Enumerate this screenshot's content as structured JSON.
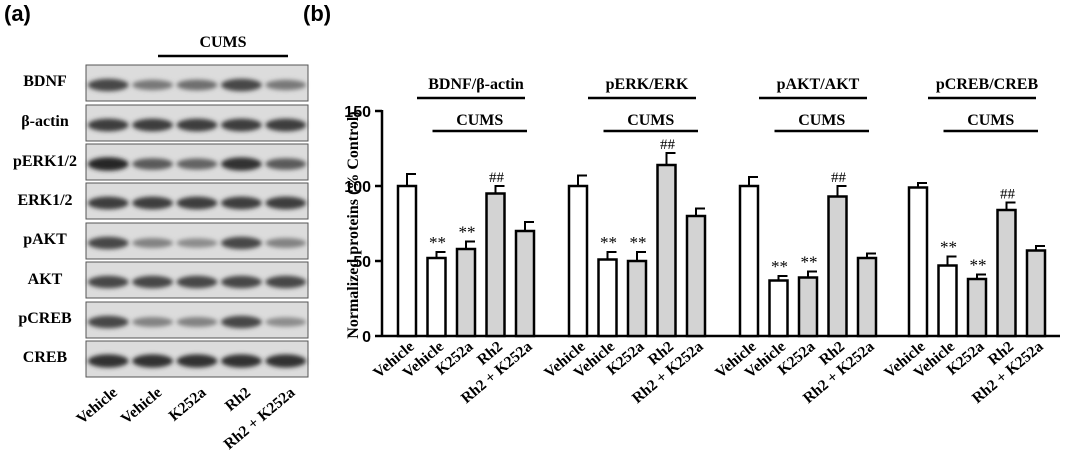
{
  "panel_a": {
    "label": "(a)",
    "group_label": "CUMS",
    "blot_rows": [
      "BDNF",
      "β-actin",
      "pERK1/2",
      "ERK1/2",
      "pAKT",
      "AKT",
      "pCREB",
      "CREB"
    ],
    "band_intensity": [
      [
        0.8,
        0.55,
        0.6,
        0.8,
        0.55
      ],
      [
        0.85,
        0.85,
        0.85,
        0.85,
        0.85
      ],
      [
        0.95,
        0.7,
        0.65,
        0.9,
        0.7
      ],
      [
        0.85,
        0.85,
        0.85,
        0.85,
        0.85
      ],
      [
        0.8,
        0.5,
        0.45,
        0.8,
        0.5
      ],
      [
        0.8,
        0.8,
        0.8,
        0.8,
        0.8
      ],
      [
        0.8,
        0.5,
        0.5,
        0.8,
        0.45
      ],
      [
        0.9,
        0.9,
        0.9,
        0.9,
        0.9
      ]
    ],
    "lanes": [
      "Vehicle",
      "Vehicle",
      "K252a",
      "Rh2",
      "Rh2 + K252a"
    ]
  },
  "panel_b": {
    "label": "(b)"
  },
  "chart_data": {
    "type": "bar",
    "ylabel": "Normalized proteins (% Control)",
    "ylim": [
      0,
      150
    ],
    "yticks": [
      "0",
      "50",
      "100",
      "150"
    ],
    "grid": false,
    "bar_colors": {
      "control": "#ffffff",
      "treated": "#d3d3d3"
    },
    "categories": [
      "Vehicle",
      "Vehicle",
      "K252a",
      "Rh2",
      "Rh2 + K252a"
    ],
    "treatment_label": "CUMS",
    "groups": [
      {
        "title": "BDNF/β-actin",
        "values": [
          100,
          52,
          58,
          95,
          70
        ],
        "errors": [
          8,
          4,
          5,
          5,
          6
        ],
        "marks": [
          "",
          "**",
          "**",
          "##",
          ""
        ]
      },
      {
        "title": "pERK/ERK",
        "values": [
          100,
          51,
          50,
          114,
          80
        ],
        "errors": [
          7,
          5,
          6,
          8,
          5
        ],
        "marks": [
          "",
          "**",
          "**",
          "##",
          ""
        ]
      },
      {
        "title": "pAKT/AKT",
        "values": [
          100,
          37,
          39,
          93,
          52
        ],
        "errors": [
          6,
          3,
          4,
          7,
          3
        ],
        "marks": [
          "",
          "**",
          "**",
          "##",
          ""
        ]
      },
      {
        "title": "pCREB/CREB",
        "values": [
          99,
          47,
          38,
          84,
          57
        ],
        "errors": [
          3,
          6,
          3,
          5,
          3
        ],
        "marks": [
          "",
          "**",
          "**",
          "##",
          ""
        ]
      }
    ]
  }
}
